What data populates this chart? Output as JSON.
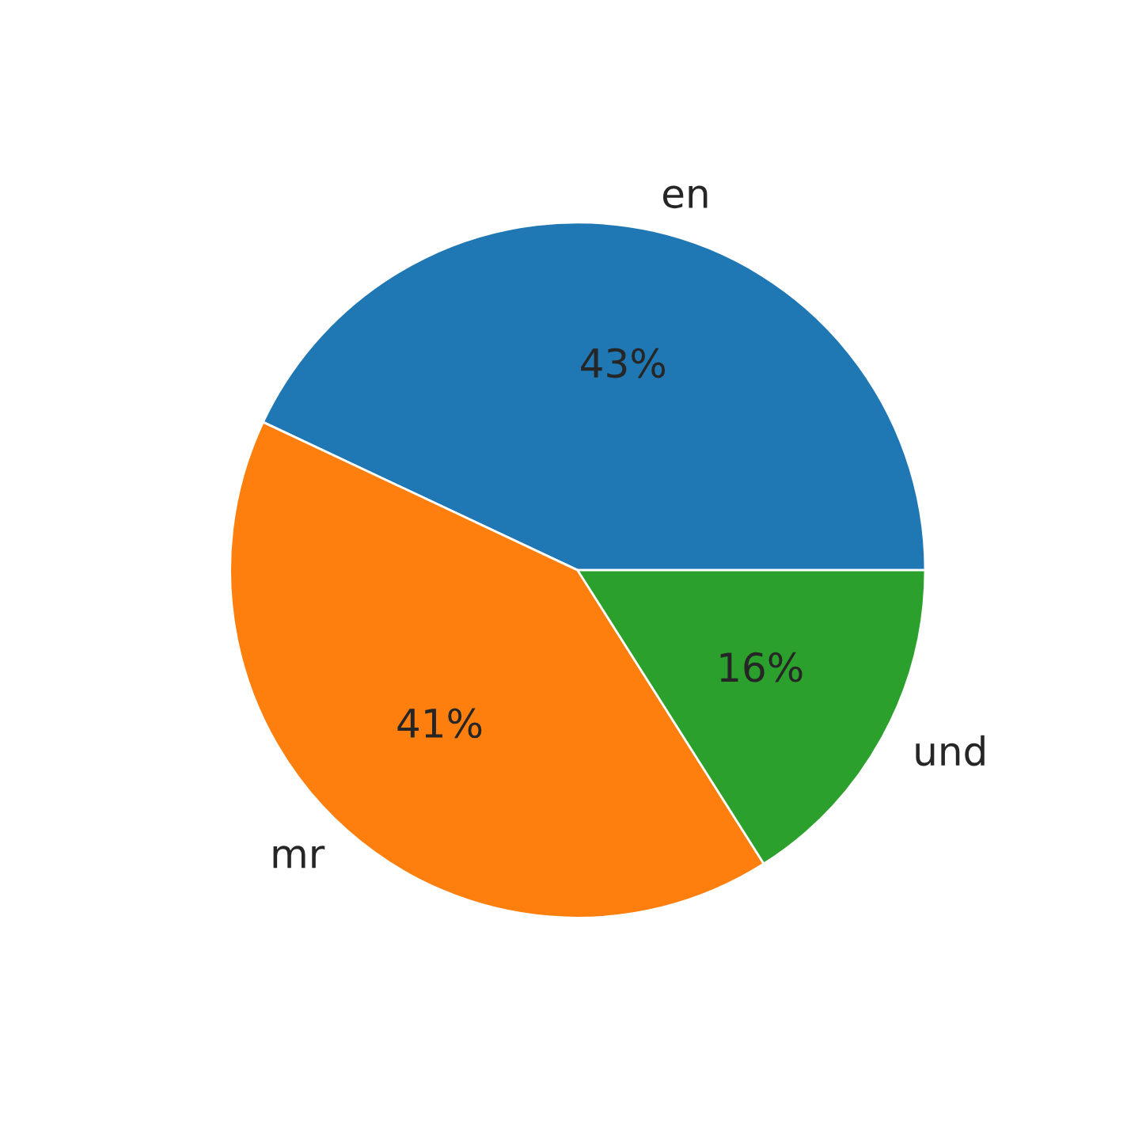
{
  "chart_data": {
    "type": "pie",
    "categories": [
      "en",
      "mr",
      "und"
    ],
    "values": [
      43,
      41,
      16
    ],
    "value_labels": [
      "43%",
      "41%",
      "16%"
    ],
    "colors": [
      "#1f77b4",
      "#ff7f0e",
      "#2ca02c"
    ]
  }
}
